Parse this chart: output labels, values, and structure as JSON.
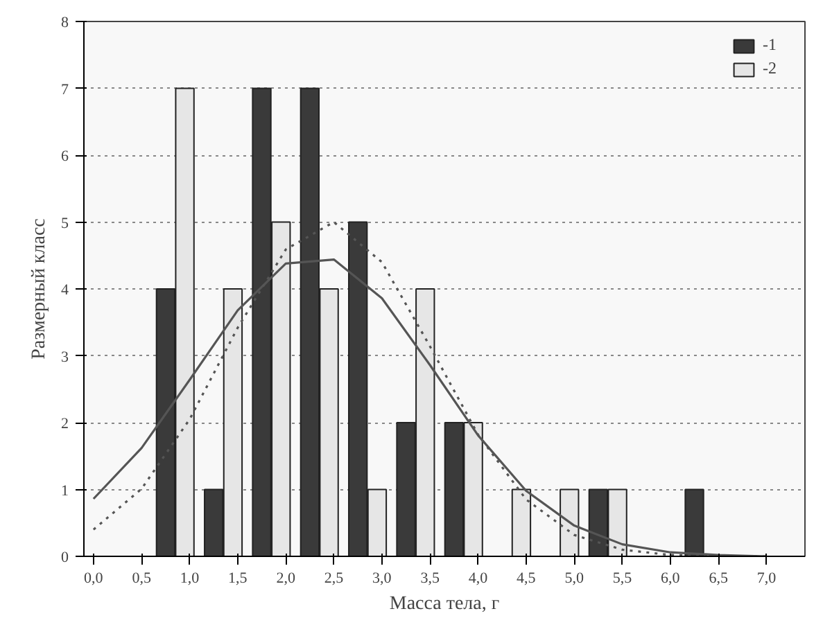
{
  "chart_data": {
    "type": "bar",
    "xlabel": "Масса тела, г",
    "ylabel": "Размерный класс",
    "xlim": [
      -0.1,
      7.4
    ],
    "ylim": [
      0,
      8
    ],
    "xticks": [
      {
        "value": 0,
        "label": "0,0"
      },
      {
        "value": 0.5,
        "label": "0,5"
      },
      {
        "value": 1,
        "label": "1,0"
      },
      {
        "value": 1.5,
        "label": "1,5"
      },
      {
        "value": 2,
        "label": "2,0"
      },
      {
        "value": 2.5,
        "label": "2,5"
      },
      {
        "value": 3,
        "label": "3,0"
      },
      {
        "value": 3.5,
        "label": "3,5"
      },
      {
        "value": 4,
        "label": "4,0"
      },
      {
        "value": 4.5,
        "label": "4,5"
      },
      {
        "value": 5,
        "label": "5,0"
      },
      {
        "value": 5.5,
        "label": "5,5"
      },
      {
        "value": 6,
        "label": "6,0"
      },
      {
        "value": 6.5,
        "label": "6,5"
      },
      {
        "value": 7,
        "label": "7,0"
      }
    ],
    "yticks": [
      0,
      1,
      2,
      3,
      4,
      5,
      6,
      7,
      8
    ],
    "grid": "y",
    "legend": "top right",
    "series": [
      {
        "name": "-1",
        "color": "#3a3a3a",
        "x": [
          0.75,
          1.25,
          1.75,
          2.25,
          2.75,
          3.25,
          3.75,
          5.25,
          6.25
        ],
        "values": [
          4,
          1,
          7,
          7,
          5,
          2,
          2,
          1,
          1
        ]
      },
      {
        "name": "-2",
        "color": "#e6e6e6",
        "x": [
          0.95,
          1.45,
          1.95,
          2.45,
          2.95,
          3.45,
          3.95,
          4.45,
          4.95,
          5.45
        ],
        "values": [
          7,
          4,
          5,
          4,
          1,
          4,
          2,
          1,
          1,
          1
        ]
      },
      {
        "type": "line",
        "line_style": "solid",
        "color": "#555555",
        "x": [
          0,
          0.5,
          1,
          1.5,
          2,
          2.5,
          3,
          3.5,
          4,
          4.5,
          5,
          5.5,
          6,
          6.5,
          7
        ],
        "values": [
          0.86,
          1.62,
          2.64,
          3.68,
          4.38,
          4.44,
          3.86,
          2.86,
          1.81,
          0.98,
          0.46,
          0.18,
          0.06,
          0.02,
          0.0
        ]
      },
      {
        "type": "line",
        "line_style": "dotted",
        "color": "#555555",
        "x": [
          0,
          0.5,
          1,
          1.5,
          2,
          2.5,
          3,
          3.5,
          4,
          4.5,
          5,
          5.5,
          6,
          6.5,
          7
        ],
        "values": [
          0.4,
          1.01,
          2.05,
          3.42,
          4.59,
          5.0,
          4.4,
          3.14,
          1.82,
          0.85,
          0.32,
          0.1,
          0.02,
          0.0,
          0.0
        ]
      }
    ]
  }
}
